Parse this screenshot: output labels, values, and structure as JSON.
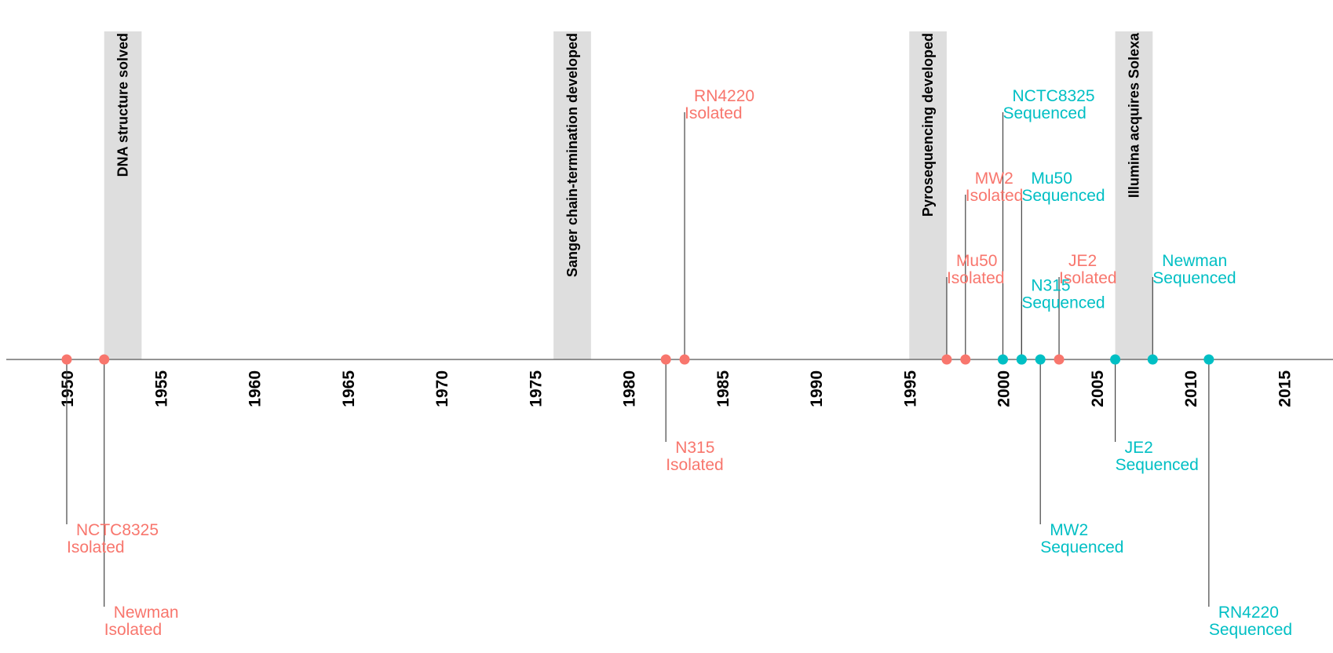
{
  "chart_data": {
    "type": "timeline",
    "title": "",
    "xlabel": "",
    "ylabel": "",
    "xlim": [
      1946.8,
      2017.3
    ],
    "ylim": [
      -3.3,
      4
    ],
    "ticks": [
      1950,
      1955,
      1960,
      1965,
      1970,
      1975,
      1980,
      1985,
      1990,
      1995,
      2000,
      2005,
      2010,
      2015
    ],
    "grid": false,
    "legend": "none",
    "colors": {
      "Isolated": "#F8766D",
      "Sequenced": "#00BFC4",
      "band": "#dedede",
      "stem": "#444444",
      "axis": "#555555"
    },
    "bands": [
      {
        "start": 1952,
        "end": 1954,
        "label": "DNA structure solved"
      },
      {
        "start": 1976,
        "end": 1978,
        "label": "Sanger chain-termination developed"
      },
      {
        "start": 1995,
        "end": 1997,
        "label": "Pyrosequencing developed"
      },
      {
        "start": 2006,
        "end": 2008,
        "label": "Illumina acquires Solexa"
      }
    ],
    "events": [
      {
        "year": 1950,
        "level": -2,
        "strain": "NCTC8325",
        "status": "Isolated"
      },
      {
        "year": 1952,
        "level": -3,
        "strain": "Newman",
        "status": "Isolated"
      },
      {
        "year": 1982,
        "level": -1,
        "strain": "N315",
        "status": "Isolated"
      },
      {
        "year": 1983,
        "level": 3,
        "strain": "RN4220",
        "status": "Isolated"
      },
      {
        "year": 1997,
        "level": 1,
        "strain": "Mu50",
        "status": "Isolated"
      },
      {
        "year": 1998,
        "level": 2,
        "strain": "MW2",
        "status": "Isolated"
      },
      {
        "year": 2000,
        "level": 3,
        "strain": "NCTC8325",
        "status": "Sequenced"
      },
      {
        "year": 2001,
        "level": 2,
        "strain": "Mu50",
        "status": "Sequenced"
      },
      {
        "year": 2001,
        "level": 0.7,
        "strain": "N315",
        "status": "Sequenced"
      },
      {
        "year": 2002,
        "level": -2,
        "strain": "MW2",
        "status": "Sequenced"
      },
      {
        "year": 2003,
        "level": 1,
        "strain": "JE2",
        "status": "Isolated"
      },
      {
        "year": 2006,
        "level": -1,
        "strain": "JE2",
        "status": "Sequenced"
      },
      {
        "year": 2008,
        "level": 1,
        "strain": "Newman",
        "status": "Sequenced"
      },
      {
        "year": 2011,
        "level": -3,
        "strain": "RN4220",
        "status": "Sequenced"
      }
    ]
  }
}
